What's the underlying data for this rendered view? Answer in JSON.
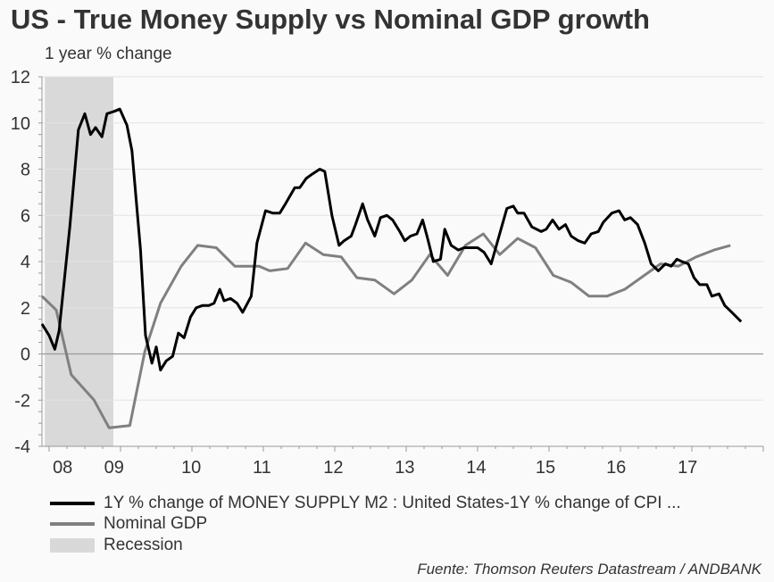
{
  "chart_data": {
    "type": "line",
    "title": "US - True Money Supply vs Nominal GDP growth",
    "ylabel": "1 year % change",
    "xlabel": "",
    "ylim": [
      -4,
      12
    ],
    "yticks": [
      -4,
      -2,
      0,
      2,
      4,
      6,
      8,
      10,
      12
    ],
    "xlim": [
      2007.9,
      2018.0
    ],
    "xtick_labels": [
      {
        "x": 2008.19,
        "label": "08"
      },
      {
        "x": 2008.91,
        "label": "09"
      },
      {
        "x": 2009.99,
        "label": "10"
      },
      {
        "x": 2010.98,
        "label": "11"
      },
      {
        "x": 2011.98,
        "label": "12"
      },
      {
        "x": 2012.98,
        "label": "13"
      },
      {
        "x": 2013.98,
        "label": "14"
      },
      {
        "x": 2014.95,
        "label": "15"
      },
      {
        "x": 2015.94,
        "label": "16"
      },
      {
        "x": 2016.94,
        "label": "17"
      }
    ],
    "grid": true,
    "recession": [
      2007.94,
      2008.9
    ],
    "series": [
      {
        "name": "1Y % change of MONEY SUPPLY M2 : United States-1Y % change of CPI ...",
        "color": "#000000",
        "x": [
          2007.9,
          2008.0,
          2008.08,
          2008.14,
          2008.29,
          2008.41,
          2008.5,
          2008.58,
          2008.65,
          2008.74,
          2008.81,
          2008.91,
          2008.99,
          2009.09,
          2009.16,
          2009.28,
          2009.35,
          2009.44,
          2009.5,
          2009.56,
          2009.64,
          2009.73,
          2009.81,
          2009.89,
          2009.98,
          2010.06,
          2010.15,
          2010.24,
          2010.31,
          2010.39,
          2010.45,
          2010.54,
          2010.63,
          2010.71,
          2010.83,
          2010.91,
          2011.03,
          2011.13,
          2011.23,
          2011.31,
          2011.44,
          2011.51,
          2011.6,
          2011.69,
          2011.79,
          2011.86,
          2011.96,
          2012.06,
          2012.13,
          2012.23,
          2012.29,
          2012.39,
          2012.46,
          2012.56,
          2012.64,
          2012.73,
          2012.81,
          2012.91,
          2012.98,
          2013.06,
          2013.15,
          2013.23,
          2013.3,
          2013.38,
          2013.48,
          2013.54,
          2013.63,
          2013.73,
          2013.81,
          2013.9,
          2014.0,
          2014.09,
          2014.19,
          2014.3,
          2014.41,
          2014.5,
          2014.56,
          2014.65,
          2014.76,
          2014.89,
          2014.96,
          2015.05,
          2015.14,
          2015.23,
          2015.31,
          2015.41,
          2015.5,
          2015.59,
          2015.69,
          2015.76,
          2015.88,
          2015.98,
          2016.06,
          2016.14,
          2016.24,
          2016.34,
          2016.43,
          2016.53,
          2016.63,
          2016.71,
          2016.79,
          2016.86,
          2016.95,
          2017.03,
          2017.11,
          2017.21,
          2017.28,
          2017.38,
          2017.46,
          2017.56,
          2017.69
        ],
        "values": [
          1.3,
          0.8,
          0.2,
          1.0,
          5.5,
          9.7,
          10.4,
          9.5,
          9.8,
          9.4,
          10.4,
          10.5,
          10.6,
          9.9,
          8.8,
          4.5,
          0.8,
          -0.4,
          0.3,
          -0.7,
          -0.3,
          -0.1,
          0.9,
          0.7,
          1.6,
          2.0,
          2.1,
          2.1,
          2.2,
          2.8,
          2.3,
          2.4,
          2.2,
          1.8,
          2.5,
          4.8,
          6.2,
          6.1,
          6.1,
          6.5,
          7.2,
          7.2,
          7.6,
          7.8,
          8.0,
          7.9,
          6.0,
          4.7,
          4.9,
          5.1,
          5.6,
          6.5,
          5.8,
          5.1,
          5.9,
          6.0,
          5.8,
          5.3,
          4.9,
          5.1,
          5.2,
          5.8,
          5.0,
          4.0,
          4.1,
          5.4,
          4.7,
          4.5,
          4.6,
          4.6,
          4.6,
          4.4,
          3.9,
          5.1,
          6.3,
          6.4,
          6.1,
          6.1,
          5.5,
          5.3,
          5.4,
          5.8,
          5.4,
          5.6,
          5.1,
          4.9,
          4.8,
          5.2,
          5.3,
          5.7,
          6.1,
          6.2,
          5.8,
          5.9,
          5.6,
          4.8,
          3.9,
          3.6,
          3.9,
          3.8,
          4.1,
          4.0,
          3.9,
          3.3,
          3.0,
          3.0,
          2.5,
          2.6,
          2.1,
          1.8,
          1.4
        ]
      },
      {
        "name": "Nominal GDP",
        "color": "#808080",
        "x": [
          2007.9,
          2008.1,
          2008.31,
          2008.63,
          2008.84,
          2009.13,
          2009.34,
          2009.56,
          2009.85,
          2010.08,
          2010.34,
          2010.6,
          2010.94,
          2011.09,
          2011.34,
          2011.59,
          2011.84,
          2012.09,
          2012.31,
          2012.56,
          2012.83,
          2013.08,
          2013.33,
          2013.58,
          2013.83,
          2014.08,
          2014.31,
          2014.56,
          2014.81,
          2015.06,
          2015.31,
          2015.56,
          2015.81,
          2016.06,
          2016.56,
          2016.81,
          2017.06,
          2017.31,
          2017.54
        ],
        "values": [
          2.5,
          1.9,
          -0.9,
          -2.0,
          -3.2,
          -3.1,
          0.1,
          2.2,
          3.8,
          4.7,
          4.6,
          3.8,
          3.8,
          3.6,
          3.7,
          4.8,
          4.3,
          4.2,
          3.3,
          3.2,
          2.6,
          3.2,
          4.3,
          3.4,
          4.7,
          5.2,
          4.3,
          5.0,
          4.6,
          3.4,
          3.1,
          2.5,
          2.5,
          2.8,
          3.9,
          3.8,
          4.2,
          4.5,
          4.7
        ]
      }
    ],
    "legend": {
      "placement": "bottom-left",
      "entries": [
        "1Y % change of MONEY SUPPLY M2 : United States-1Y % change of CPI ...",
        "Nominal GDP",
        "Recession"
      ]
    },
    "colors": {
      "recession": "#d9d9d9",
      "grid": "#e3e3e3"
    }
  },
  "footer": "Fuente: Thomson Reuters Datastream / ANDBANK"
}
